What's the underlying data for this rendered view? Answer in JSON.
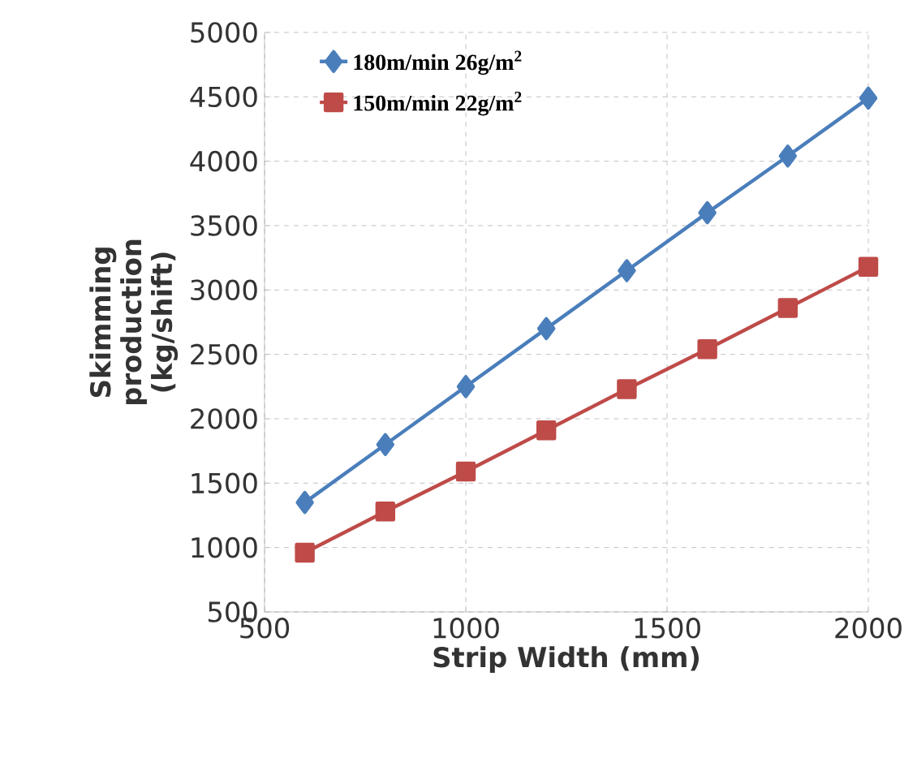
{
  "chart_data": {
    "type": "line",
    "xlabel": "Strip Width (mm)",
    "ylabel": "Skimming production (kg/shift)",
    "x": [
      600,
      800,
      1000,
      1200,
      1400,
      1600,
      1800,
      2000
    ],
    "series": [
      {
        "name": "180m/min 26g/m$^{2}$",
        "color": "#4a7ebb",
        "marker": "diamond",
        "values": [
          1350,
          1800,
          2250,
          2700,
          3150,
          3600,
          4040,
          4490
        ]
      },
      {
        "name": "150m/min 22g/m$^{2}$",
        "color": "#be4b48",
        "marker": "square",
        "values": [
          960,
          1280,
          1590,
          1910,
          2230,
          2540,
          2860,
          3180
        ]
      }
    ],
    "xlim": [
      500,
      2000
    ],
    "xticks": [
      500,
      1000,
      1500,
      2000
    ],
    "ylim": [
      500,
      5000
    ],
    "yticks": [
      500,
      1000,
      1500,
      2000,
      2500,
      3000,
      3500,
      4000,
      4500,
      5000
    ],
    "grid": true,
    "legend": "top left",
    "line_style": "solid"
  }
}
